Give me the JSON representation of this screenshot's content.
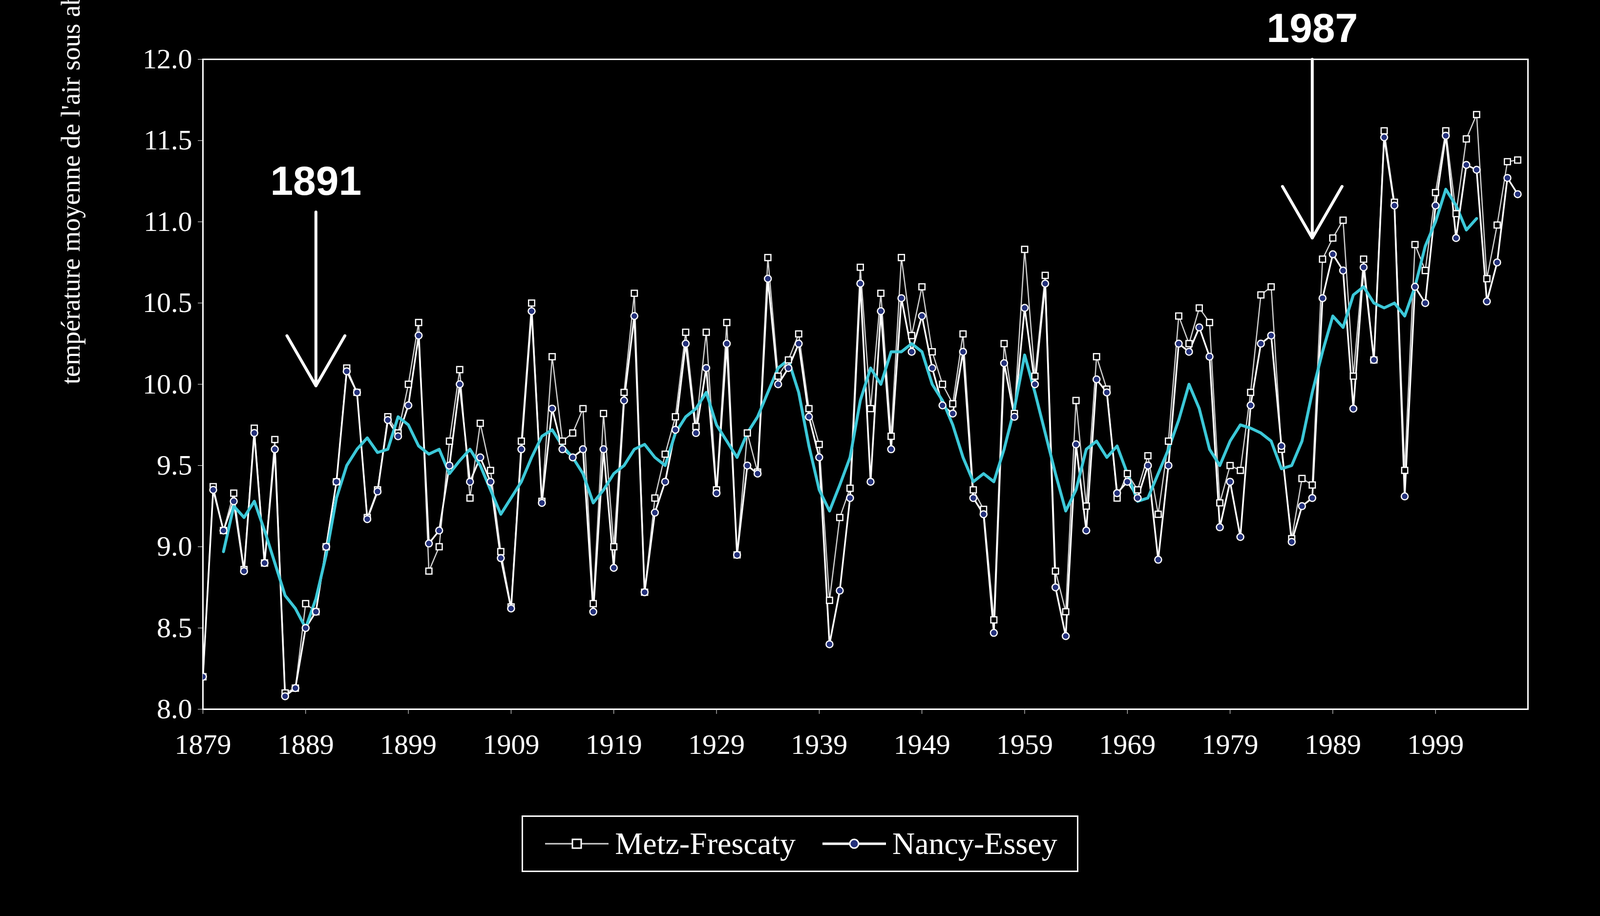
{
  "chart_data": {
    "type": "line",
    "ylabel": "température moyenne de l'air sous abri (°C)",
    "x": [
      1879,
      1880,
      1881,
      1882,
      1883,
      1884,
      1885,
      1886,
      1887,
      1888,
      1889,
      1890,
      1891,
      1892,
      1893,
      1894,
      1895,
      1896,
      1897,
      1898,
      1899,
      1900,
      1901,
      1902,
      1903,
      1904,
      1905,
      1906,
      1907,
      1908,
      1909,
      1910,
      1911,
      1912,
      1913,
      1914,
      1915,
      1916,
      1917,
      1918,
      1919,
      1920,
      1921,
      1922,
      1923,
      1924,
      1925,
      1926,
      1927,
      1928,
      1929,
      1930,
      1931,
      1932,
      1933,
      1934,
      1935,
      1936,
      1937,
      1938,
      1939,
      1940,
      1941,
      1942,
      1943,
      1944,
      1945,
      1946,
      1947,
      1948,
      1949,
      1950,
      1951,
      1952,
      1953,
      1954,
      1955,
      1956,
      1957,
      1958,
      1959,
      1960,
      1961,
      1962,
      1963,
      1964,
      1965,
      1966,
      1967,
      1968,
      1969,
      1970,
      1971,
      1972,
      1973,
      1974,
      1975,
      1976,
      1977,
      1978,
      1979,
      1980,
      1981,
      1982,
      1983,
      1984,
      1985,
      1986,
      1987,
      1988,
      1989,
      1990,
      1991,
      1992,
      1993,
      1994,
      1995,
      1996,
      1997,
      1998,
      1999,
      2000,
      2001,
      2002,
      2003,
      2004,
      2005,
      2006,
      2007
    ],
    "series": [
      {
        "name": "Metz-Frescaty",
        "color": "#d0d0d0",
        "marker": "square",
        "line_style": "solid",
        "values": [
          8.2,
          9.37,
          9.1,
          9.33,
          8.86,
          9.73,
          8.9,
          9.66,
          8.1,
          8.13,
          8.65,
          8.6,
          9.0,
          9.4,
          10.1,
          9.95,
          9.18,
          9.35,
          9.8,
          9.7,
          10.0,
          10.38,
          8.85,
          9.0,
          9.65,
          10.09,
          9.3,
          9.76,
          9.47,
          8.97,
          8.63,
          9.65,
          10.5,
          9.28,
          10.17,
          9.65,
          9.7,
          9.85,
          8.65,
          9.82,
          9.0,
          9.95,
          10.56,
          8.72,
          9.3,
          9.57,
          9.8,
          10.32,
          9.74,
          10.32,
          9.35,
          10.38,
          8.95,
          9.7,
          9.46,
          10.78,
          10.05,
          10.15,
          10.31,
          9.85,
          9.63,
          8.67,
          9.18,
          9.36,
          10.72,
          9.85,
          10.56,
          9.68,
          10.78,
          10.3,
          10.6,
          10.2,
          10.0,
          9.88,
          10.31,
          9.35,
          9.23,
          8.55,
          10.25,
          9.82,
          10.83,
          10.05,
          10.67,
          8.85,
          8.6,
          9.9,
          9.25,
          10.17,
          9.97,
          9.3,
          9.45,
          9.35,
          9.56,
          9.2,
          9.65,
          10.42,
          10.25,
          10.47,
          10.38,
          9.27,
          9.5,
          9.47,
          9.95,
          10.55,
          10.6,
          9.6,
          9.05,
          9.42,
          9.38,
          10.77,
          10.9,
          11.01,
          10.05,
          10.77,
          10.15,
          11.56,
          11.12,
          9.47,
          10.86,
          10.7,
          11.18,
          11.56,
          11.05,
          11.51,
          11.66,
          10.65,
          10.98,
          11.37,
          11.38
        ]
      },
      {
        "name": "Nancy-Essey",
        "color": "#ffffff",
        "marker": "circle",
        "line_style": "solid",
        "values": [
          8.2,
          9.35,
          9.1,
          9.28,
          8.85,
          9.7,
          8.9,
          9.6,
          8.08,
          8.13,
          8.5,
          8.6,
          9.0,
          9.4,
          10.08,
          9.95,
          9.17,
          9.34,
          9.78,
          9.68,
          9.87,
          10.3,
          9.02,
          9.1,
          9.5,
          10.0,
          9.4,
          9.55,
          9.4,
          8.93,
          8.62,
          9.6,
          10.45,
          9.27,
          9.85,
          9.6,
          9.55,
          9.6,
          8.6,
          9.6,
          8.87,
          9.9,
          10.42,
          8.72,
          9.21,
          9.4,
          9.72,
          10.25,
          9.7,
          10.1,
          9.33,
          10.25,
          8.95,
          9.5,
          9.45,
          10.65,
          10.0,
          10.1,
          10.25,
          9.8,
          9.55,
          8.4,
          8.73,
          9.3,
          10.62,
          9.4,
          10.45,
          9.6,
          10.53,
          10.2,
          10.42,
          10.1,
          9.87,
          9.82,
          10.2,
          9.3,
          9.2,
          8.47,
          10.13,
          9.8,
          10.47,
          10.0,
          10.62,
          8.75,
          8.45,
          9.63,
          9.1,
          10.03,
          9.95,
          9.33,
          9.4,
          9.3,
          9.5,
          8.92,
          9.5,
          10.25,
          10.2,
          10.35,
          10.17,
          9.12,
          9.4,
          9.06,
          9.87,
          10.25,
          10.3,
          9.62,
          9.03,
          9.25,
          9.3,
          10.53,
          10.8,
          10.7,
          9.85,
          10.72,
          10.15,
          11.52,
          11.1,
          9.31,
          10.6,
          10.5,
          11.1,
          11.53,
          10.9,
          11.35,
          11.32,
          10.51,
          10.75,
          11.27,
          11.17
        ]
      },
      {
        "color": "#3cc8d8",
        "line_style": "solid",
        "values": [
          null,
          null,
          8.97,
          9.25,
          9.18,
          9.28,
          9.1,
          8.9,
          8.7,
          8.62,
          8.5,
          8.68,
          8.95,
          9.3,
          9.5,
          9.6,
          9.67,
          9.58,
          9.6,
          9.8,
          9.75,
          9.62,
          9.57,
          9.6,
          9.45,
          9.53,
          9.6,
          9.5,
          9.35,
          9.2,
          9.3,
          9.4,
          9.55,
          9.68,
          9.72,
          9.62,
          9.55,
          9.45,
          9.27,
          9.35,
          9.45,
          9.5,
          9.6,
          9.63,
          9.55,
          9.5,
          9.7,
          9.8,
          9.85,
          9.95,
          9.75,
          9.65,
          9.55,
          9.7,
          9.8,
          9.95,
          10.1,
          10.15,
          9.95,
          9.62,
          9.35,
          9.22,
          9.38,
          9.55,
          9.9,
          10.1,
          10.0,
          10.2,
          10.2,
          10.25,
          10.2,
          10.0,
          9.9,
          9.75,
          9.55,
          9.4,
          9.45,
          9.4,
          9.6,
          9.85,
          10.18,
          9.95,
          9.7,
          9.45,
          9.22,
          9.35,
          9.6,
          9.65,
          9.55,
          9.62,
          9.45,
          9.28,
          9.3,
          9.45,
          9.6,
          9.78,
          10.0,
          9.85,
          9.6,
          9.5,
          9.65,
          9.75,
          9.73,
          9.7,
          9.65,
          9.48,
          9.5,
          9.65,
          9.95,
          10.2,
          10.42,
          10.35,
          10.55,
          10.6,
          10.5,
          10.47,
          10.5,
          10.42,
          10.6,
          10.85,
          11.0,
          11.2,
          11.1,
          10.95,
          11.02,
          null,
          null,
          null,
          null
        ]
      }
    ],
    "xlim": [
      1879,
      2008
    ],
    "xticks": [
      1879,
      1889,
      1899,
      1909,
      1919,
      1929,
      1939,
      1949,
      1959,
      1969,
      1979,
      1989,
      1999
    ],
    "ylim": [
      8,
      12
    ],
    "yticks": [
      {
        "value": 8,
        "label": "8.0"
      },
      {
        "value": 8.5,
        "label": "8.5"
      },
      {
        "value": 9,
        "label": "9.0"
      },
      {
        "value": 9.5,
        "label": "9.5"
      },
      {
        "value": 10,
        "label": "10.0"
      },
      {
        "value": 10.5,
        "label": "10.5"
      },
      {
        "value": 11,
        "label": "11.0"
      },
      {
        "value": 11.5,
        "label": "11.5"
      },
      {
        "value": 12,
        "label": "12.0"
      }
    ],
    "grid": false,
    "legend": "bottom",
    "annotations": [
      {
        "text": "1891",
        "x": 1890,
        "y": 11.06,
        "y_end": 9.99
      },
      {
        "text": "1987",
        "x": 1987,
        "y": 12.0,
        "y_end": 10.9
      }
    ]
  }
}
